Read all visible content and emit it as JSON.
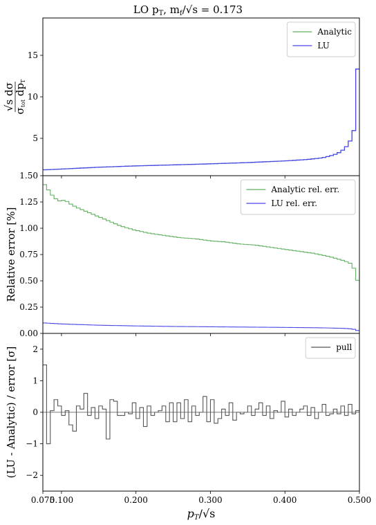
{
  "chart_data": [
    {
      "type": "line",
      "panel": "top",
      "title": "LO p_T, m_f/√s = 0.173",
      "title_parts": {
        "a": "LO p",
        "b": "T",
        "c": ", m",
        "d": "f",
        "e": "/√s = 0.173"
      },
      "ylabel": "√s dσ / σ_tot dp_T",
      "ylabel_parts": {
        "num": "√s dσ",
        "den_a": "σ",
        "den_b": "tot",
        "den_c": " dp",
        "den_d": "T"
      },
      "xlim": [
        0.075,
        0.5
      ],
      "ylim": [
        0.5,
        19.5
      ],
      "yticks": [
        5,
        10,
        15
      ],
      "ytick_labels": [
        "5",
        "10",
        "15"
      ],
      "legend": "top-right",
      "bin_width": 0.005,
      "series": [
        {
          "name": "Analytic",
          "color": "#5fb05f",
          "points": [
            [
              0.075,
              1.2
            ],
            [
              0.1,
              1.3
            ],
            [
              0.15,
              1.52
            ],
            [
              0.2,
              1.68
            ],
            [
              0.25,
              1.8
            ],
            [
              0.3,
              1.93
            ],
            [
              0.35,
              2.08
            ],
            [
              0.4,
              2.28
            ],
            [
              0.43,
              2.45
            ],
            [
              0.45,
              2.65
            ],
            [
              0.46,
              2.85
            ],
            [
              0.47,
              3.15
            ],
            [
              0.475,
              3.4
            ],
            [
              0.48,
              3.75
            ],
            [
              0.485,
              4.25
            ],
            [
              0.49,
              5.1
            ],
            [
              0.493,
              6.1
            ],
            [
              0.496,
              7.9
            ],
            [
              0.499,
              18.8
            ],
            [
              0.5,
              18.8
            ]
          ]
        },
        {
          "name": "LU",
          "color": "#4848e6",
          "points": [
            [
              0.075,
              1.2
            ],
            [
              0.1,
              1.3
            ],
            [
              0.15,
              1.52
            ],
            [
              0.2,
              1.68
            ],
            [
              0.25,
              1.8
            ],
            [
              0.3,
              1.93
            ],
            [
              0.35,
              2.08
            ],
            [
              0.4,
              2.28
            ],
            [
              0.43,
              2.45
            ],
            [
              0.45,
              2.65
            ],
            [
              0.46,
              2.85
            ],
            [
              0.47,
              3.15
            ],
            [
              0.475,
              3.4
            ],
            [
              0.48,
              3.75
            ],
            [
              0.485,
              4.25
            ],
            [
              0.49,
              5.1
            ],
            [
              0.493,
              6.1
            ],
            [
              0.496,
              7.9
            ],
            [
              0.499,
              18.8
            ],
            [
              0.5,
              18.8
            ]
          ]
        }
      ]
    },
    {
      "type": "line",
      "panel": "middle",
      "ylabel": "Relative error [%]",
      "xlim": [
        0.075,
        0.5
      ],
      "ylim": [
        0.0,
        1.5
      ],
      "yticks": [
        0.0,
        0.25,
        0.5,
        0.75,
        1.0,
        1.25,
        1.5
      ],
      "ytick_labels": [
        "0.00",
        "0.25",
        "0.50",
        "0.75",
        "1.00",
        "1.25",
        "1.50"
      ],
      "legend": "top-right",
      "bin_width": 0.005,
      "series": [
        {
          "name": "Analytic rel. err.",
          "color": "#5fb05f",
          "points": [
            [
              0.075,
              1.43
            ],
            [
              0.08,
              1.4
            ],
            [
              0.085,
              1.33
            ],
            [
              0.09,
              1.3
            ],
            [
              0.095,
              1.26
            ],
            [
              0.1,
              1.26
            ],
            [
              0.105,
              1.27
            ],
            [
              0.11,
              1.24
            ],
            [
              0.12,
              1.2
            ],
            [
              0.13,
              1.17
            ],
            [
              0.14,
              1.14
            ],
            [
              0.15,
              1.11
            ],
            [
              0.16,
              1.08
            ],
            [
              0.17,
              1.05
            ],
            [
              0.18,
              1.02
            ],
            [
              0.19,
              1.0
            ],
            [
              0.2,
              0.98
            ],
            [
              0.22,
              0.95
            ],
            [
              0.24,
              0.93
            ],
            [
              0.26,
              0.91
            ],
            [
              0.28,
              0.9
            ],
            [
              0.3,
              0.88
            ],
            [
              0.32,
              0.87
            ],
            [
              0.34,
              0.85
            ],
            [
              0.36,
              0.84
            ],
            [
              0.38,
              0.82
            ],
            [
              0.4,
              0.8
            ],
            [
              0.42,
              0.78
            ],
            [
              0.44,
              0.76
            ],
            [
              0.46,
              0.73
            ],
            [
              0.47,
              0.71
            ],
            [
              0.48,
              0.69
            ],
            [
              0.49,
              0.66
            ],
            [
              0.495,
              0.58
            ],
            [
              0.5,
              0.43
            ]
          ]
        },
        {
          "name": "LU rel. err.",
          "color": "#4848e6",
          "points": [
            [
              0.075,
              0.1
            ],
            [
              0.1,
              0.09
            ],
            [
              0.15,
              0.078
            ],
            [
              0.2,
              0.071
            ],
            [
              0.25,
              0.066
            ],
            [
              0.3,
              0.063
            ],
            [
              0.35,
              0.06
            ],
            [
              0.4,
              0.057
            ],
            [
              0.45,
              0.053
            ],
            [
              0.48,
              0.048
            ],
            [
              0.49,
              0.043
            ],
            [
              0.495,
              0.035
            ],
            [
              0.5,
              0.02
            ]
          ]
        }
      ]
    },
    {
      "type": "line",
      "panel": "bottom",
      "ylabel": "(LU - Analytic) / error [σ]",
      "xlabel": "p_T/√s",
      "xlabel_parts": {
        "a": "p",
        "b": "T",
        "c": "/√s"
      },
      "xlim": [
        0.075,
        0.5
      ],
      "ylim": [
        -2.5,
        2.5
      ],
      "xticks": [
        0.075,
        0.1,
        0.2,
        0.3,
        0.4,
        0.5
      ],
      "xtick_labels": [
        "0.075",
        "0.100",
        "0.200",
        "0.300",
        "0.400",
        "0.500"
      ],
      "yticks": [
        -2,
        -1,
        0,
        1,
        2
      ],
      "ytick_labels": [
        "−2",
        "−1",
        "0",
        "1",
        "2"
      ],
      "legend": "top-right",
      "bin_width": 0.005,
      "series": [
        {
          "name": "pull",
          "color": "#555555",
          "values": [
            1.5,
            -1.0,
            0.05,
            0.4,
            0.2,
            -0.1,
            0.05,
            -0.4,
            -0.6,
            0.2,
            0.1,
            0.6,
            -0.1,
            0.15,
            -0.2,
            0.2,
            0.1,
            -0.85,
            0.4,
            0.35,
            -0.1,
            -0.1,
            0.0,
            -0.05,
            0.3,
            -0.2,
            0.15,
            -0.45,
            0.2,
            -0.1,
            0.0,
            0.05,
            0.2,
            -0.3,
            0.3,
            -0.3,
            0.3,
            -0.2,
            0.4,
            -0.3,
            0.2,
            -0.1,
            0.0,
            0.5,
            -0.3,
            0.4,
            -0.35,
            -0.2,
            0.1,
            -0.1,
            0.3,
            -0.25,
            0.0,
            -0.05,
            0.0,
            0.2,
            -0.1,
            0.1,
            0.3,
            -0.1,
            0.2,
            -0.2,
            0.05,
            0.0,
            0.35,
            -0.15,
            0.1,
            -0.1,
            0.0,
            0.1,
            0.2,
            -0.1,
            0.15,
            -0.2,
            0.0,
            0.25,
            -0.1,
            -0.05,
            0.1,
            -0.05,
            0.2,
            -0.1,
            0.25,
            -0.05,
            0.05
          ]
        }
      ]
    }
  ]
}
